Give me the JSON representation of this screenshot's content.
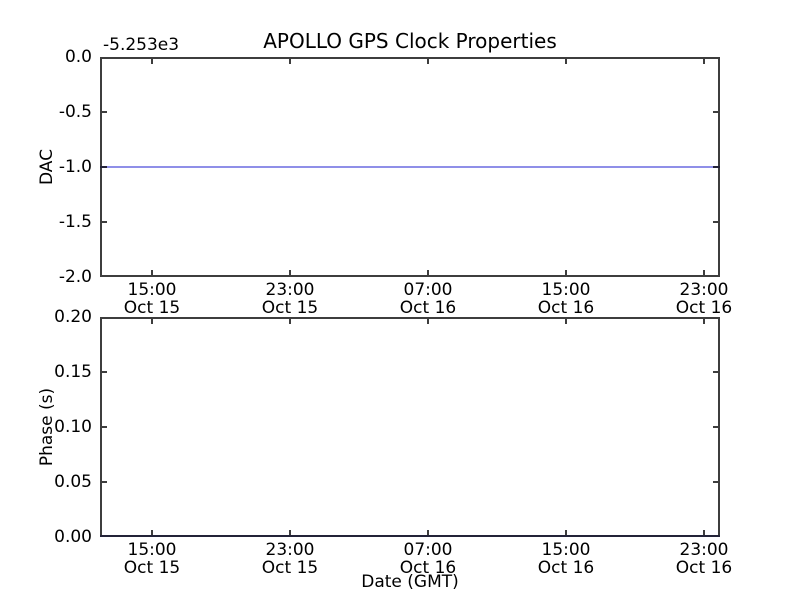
{
  "figure": {
    "title": "APOLLO GPS Clock Properties",
    "background": "#ffffff",
    "spine_color": "#3d3d3d"
  },
  "chart_data": [
    {
      "type": "line",
      "title": "APOLLO GPS Clock Properties",
      "ylabel": "DAC",
      "y_offset_text": "-5.253e3",
      "ylim": [
        -2.0,
        0.0
      ],
      "yticks": [
        0.0,
        -0.5,
        -1.0,
        -1.5,
        -2.0
      ],
      "ytick_labels": [
        "0.0",
        "-0.5",
        "-1.0",
        "-1.5",
        "-2.0"
      ],
      "xtick_labels": [
        [
          "15:00",
          "Oct 15"
        ],
        [
          "23:00",
          "Oct 15"
        ],
        [
          "07:00",
          "Oct 16"
        ],
        [
          "15:00",
          "Oct 16"
        ],
        [
          "23:00",
          "Oct 16"
        ]
      ],
      "grid": false,
      "legend": null,
      "series": [
        {
          "name": "DAC",
          "shape": "hline",
          "value": -1.0,
          "color": "#8f8fe8"
        }
      ]
    },
    {
      "type": "line",
      "title": "",
      "ylabel": "Phase (s)",
      "xlabel": "Date (GMT)",
      "ylim": [
        0.0,
        0.2
      ],
      "yticks": [
        0.2,
        0.15,
        0.1,
        0.05,
        0.0
      ],
      "ytick_labels": [
        "0.20",
        "0.15",
        "0.10",
        "0.05",
        "0.00"
      ],
      "xtick_labels": [
        [
          "15:00",
          "Oct 15"
        ],
        [
          "23:00",
          "Oct 15"
        ],
        [
          "07:00",
          "Oct 16"
        ],
        [
          "15:00",
          "Oct 16"
        ],
        [
          "23:00",
          "Oct 16"
        ]
      ],
      "grid": false,
      "legend": null,
      "series": [
        {
          "name": "Phase",
          "shape": "hline",
          "value": 0.0,
          "color": "#8f8fe8"
        }
      ]
    }
  ]
}
